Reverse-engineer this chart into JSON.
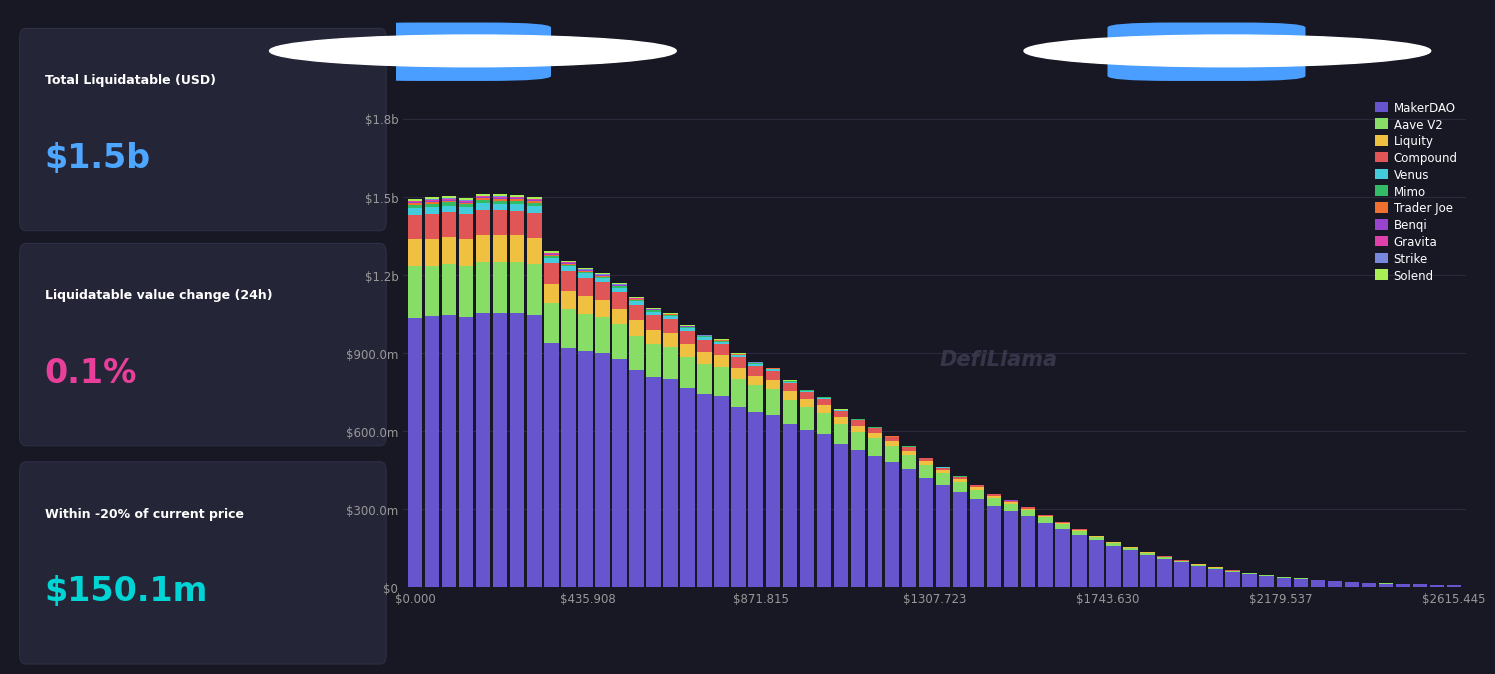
{
  "bg_color": "#181825",
  "left_panel_bg": "#1e1e2e",
  "card_bg": "#252538",
  "card_border": "#2e2e45",
  "stats": [
    {
      "label": "Total Liquidatable (USD)",
      "value": "$1.5b",
      "color": "#4da6ff"
    },
    {
      "label": "Liquidatable value change (24h)",
      "value": "0.1%",
      "color": "#e8409a"
    },
    {
      "label": "Within -20% of current price",
      "value": "$150.1m",
      "color": "#00d4d4"
    }
  ],
  "x_labels": [
    "$0.000",
    "$435.908",
    "$871.815",
    "$1307.723",
    "$1743.630",
    "$2179.537",
    "$2615.445"
  ],
  "y_labels": [
    "$0",
    "$300.0m",
    "$600.0m",
    "$900.0m",
    "$1.2b",
    "$1.5b",
    "$1.8b"
  ],
  "y_ticks": [
    0,
    300000000,
    600000000,
    900000000,
    1200000000,
    1500000000,
    1800000000
  ],
  "y_max": 1900000000,
  "legend_entries": [
    {
      "label": "MakerDAO",
      "color": "#6655cc"
    },
    {
      "label": "Aave V2",
      "color": "#88dd66"
    },
    {
      "label": "Liquity",
      "color": "#f0c040"
    },
    {
      "label": "Compound",
      "color": "#e05555"
    },
    {
      "label": "Venus",
      "color": "#44ccdd"
    },
    {
      "label": "Mimo",
      "color": "#33bb66"
    },
    {
      "label": "Trader Joe",
      "color": "#f07030"
    },
    {
      "label": "Benqi",
      "color": "#9944cc"
    },
    {
      "label": "Gravita",
      "color": "#e040aa"
    },
    {
      "label": "Strike",
      "color": "#7788dd"
    },
    {
      "label": "Solend",
      "color": "#aaee55"
    }
  ],
  "watermark": "DefiLlama",
  "toggle_color": "#4a9eff",
  "n_bars": 62
}
